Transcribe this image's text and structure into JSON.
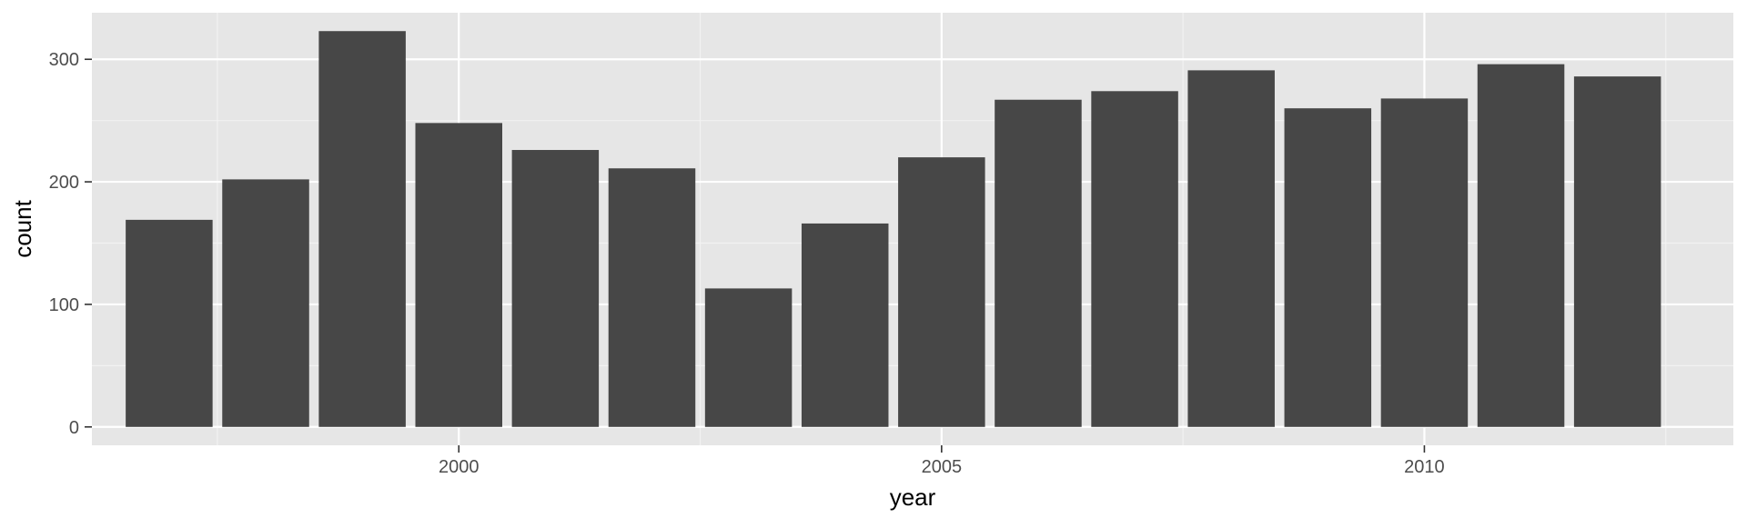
{
  "chart_data": {
    "type": "bar",
    "title": "",
    "xlabel": "year",
    "ylabel": "count",
    "x": [
      1997,
      1998,
      1999,
      2000,
      2001,
      2002,
      2003,
      2004,
      2005,
      2006,
      2007,
      2008,
      2009,
      2010,
      2011,
      2012
    ],
    "values": [
      169,
      202,
      323,
      248,
      226,
      211,
      113,
      166,
      220,
      267,
      274,
      291,
      260,
      268,
      296,
      286
    ],
    "xlim": [
      1996.2,
      2013.2
    ],
    "ylim": [
      -15,
      338
    ],
    "x_ticks": [
      2000,
      2005,
      2010
    ],
    "x_tick_labels": [
      "2000",
      "2005",
      "2010"
    ],
    "y_ticks": [
      0,
      100,
      200,
      300
    ],
    "y_tick_labels": [
      "0",
      "100",
      "200",
      "300"
    ],
    "grid": true,
    "legend": "none",
    "colors": {
      "bar": "#474747",
      "panel_background": "#e6e6e6",
      "grid_major": "#ffffff",
      "grid_minor": "#f2f2f2",
      "tick_label": "#4d4d4d",
      "axis_title": "#000000"
    }
  }
}
